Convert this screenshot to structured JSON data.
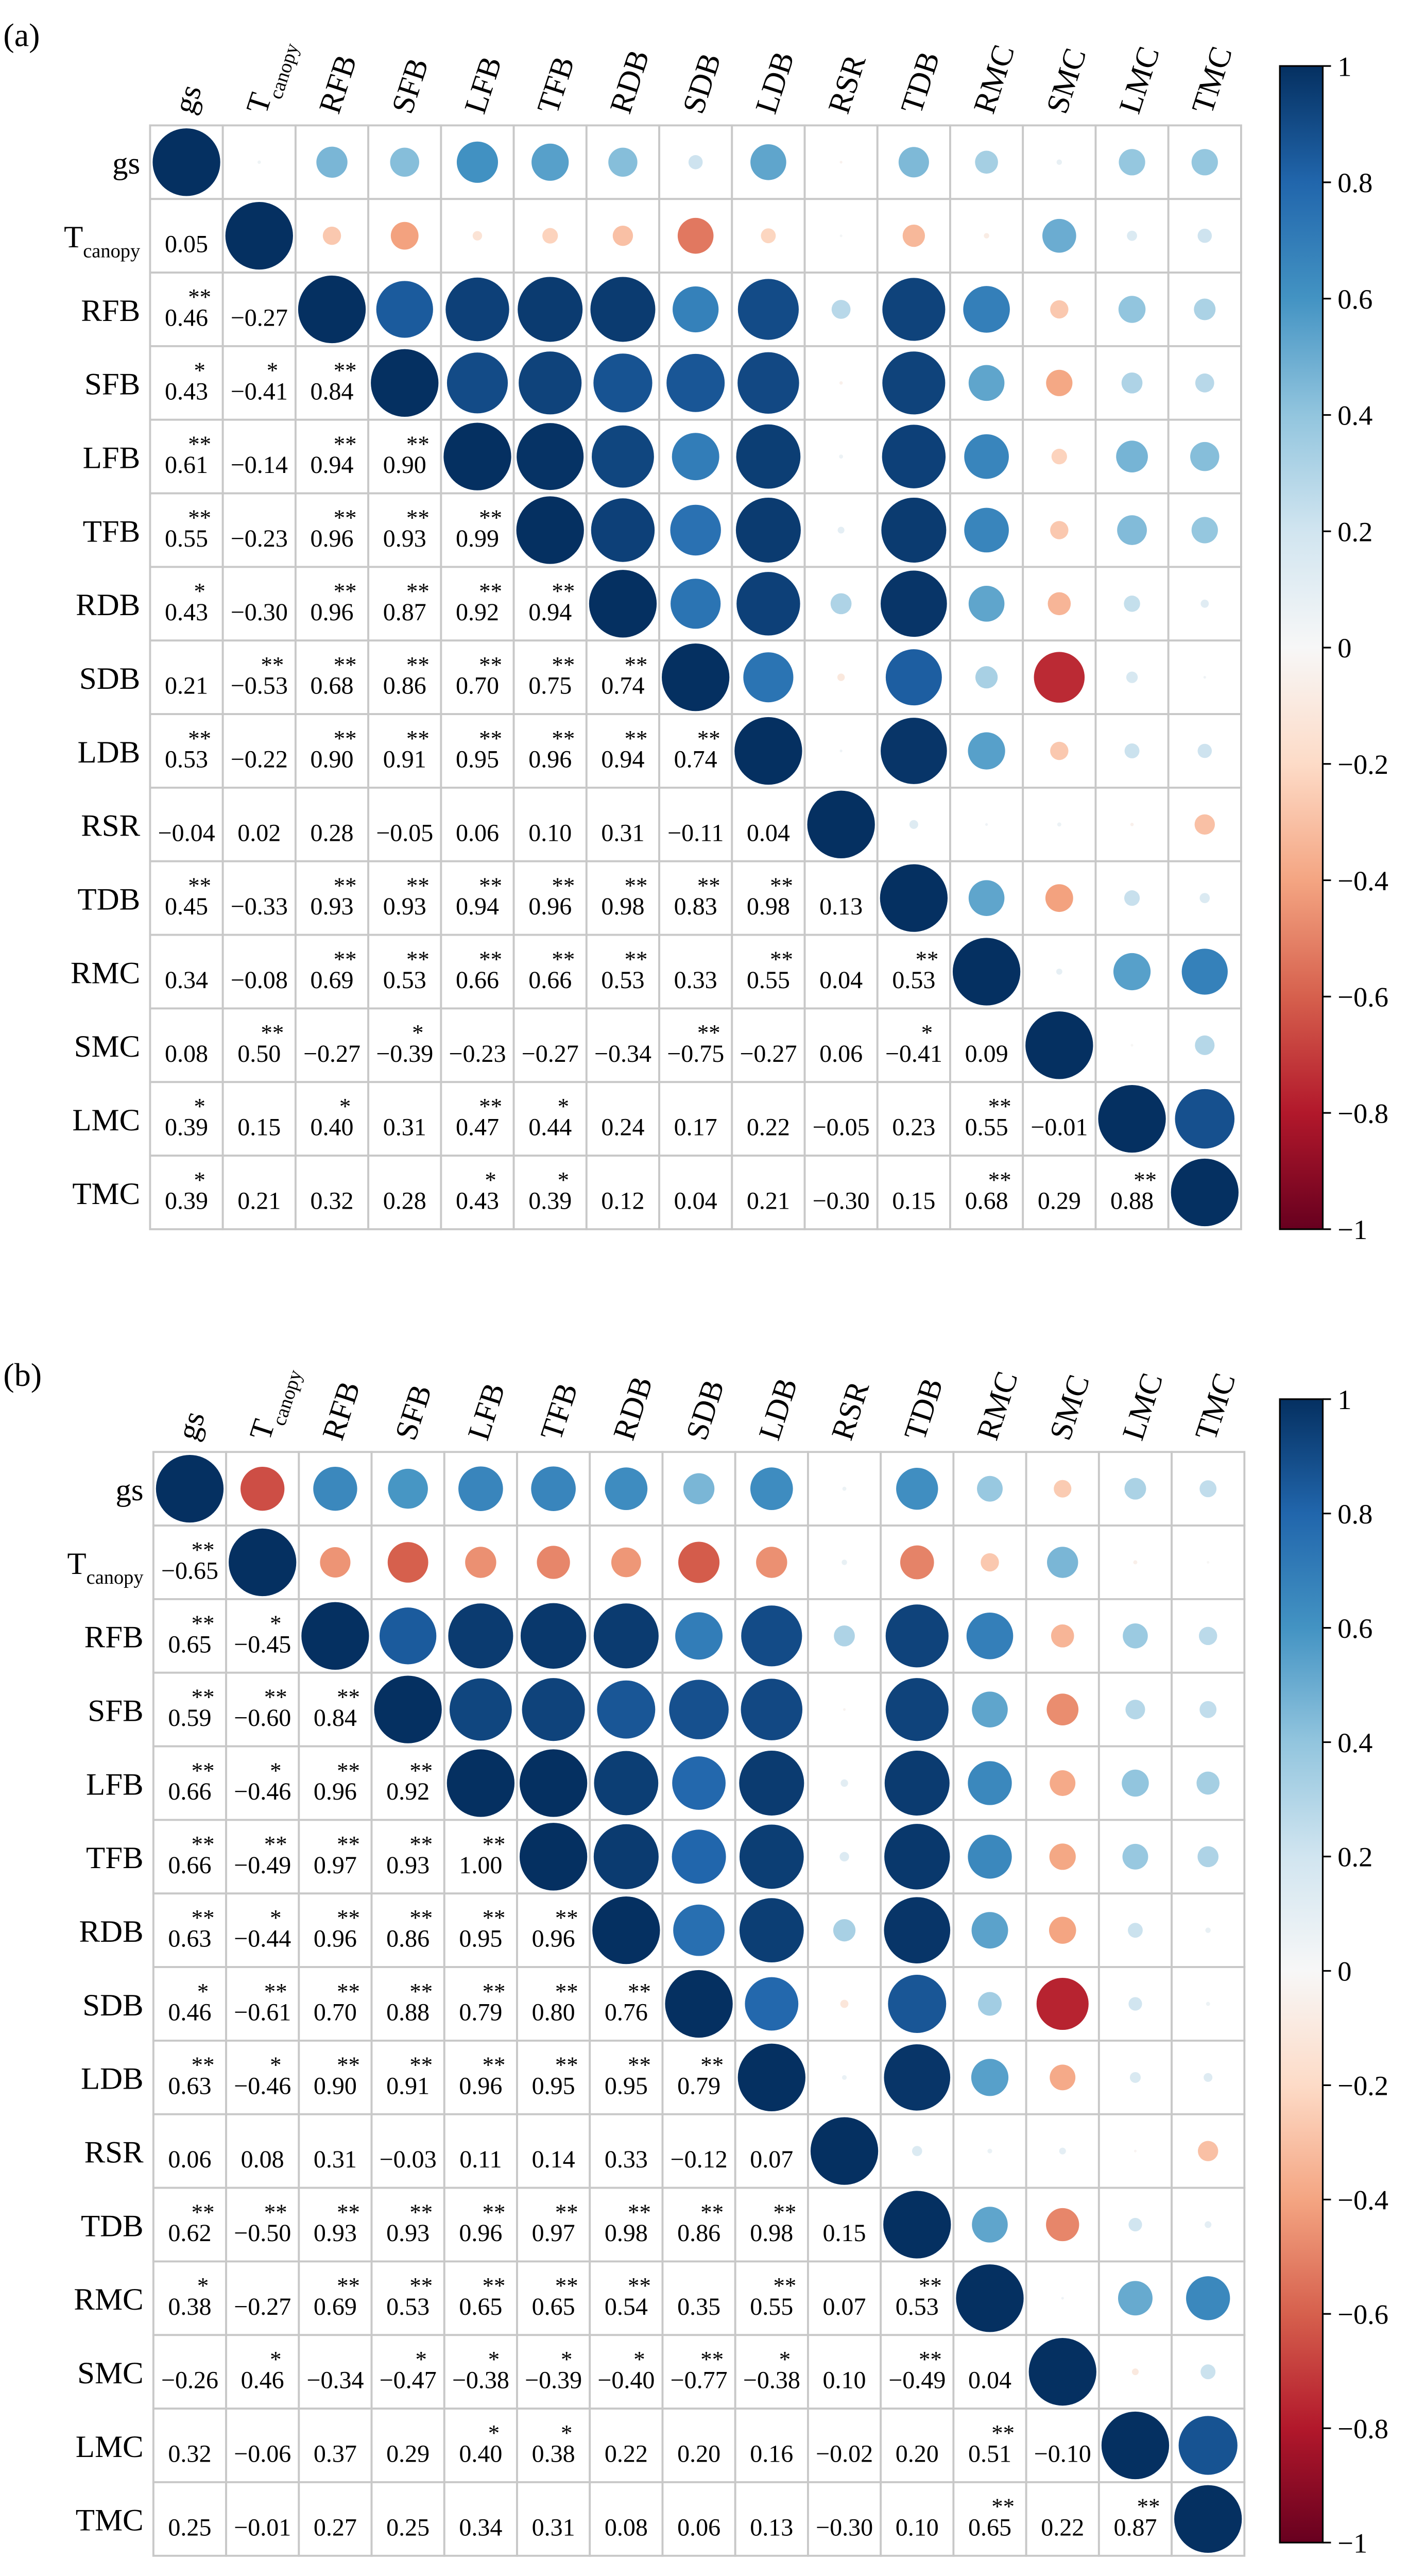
{
  "chart_data": [
    {
      "type": "heatmap",
      "panel_label": "(a)",
      "variables": [
        {
          "name": "gs",
          "sub": ""
        },
        {
          "name": "T",
          "sub": "canopy"
        },
        {
          "name": "RFB",
          "sub": ""
        },
        {
          "name": "SFB",
          "sub": ""
        },
        {
          "name": "LFB",
          "sub": ""
        },
        {
          "name": "TFB",
          "sub": ""
        },
        {
          "name": "RDB",
          "sub": ""
        },
        {
          "name": "SDB",
          "sub": ""
        },
        {
          "name": "LDB",
          "sub": ""
        },
        {
          "name": "RSR",
          "sub": ""
        },
        {
          "name": "TDB",
          "sub": ""
        },
        {
          "name": "RMC",
          "sub": ""
        },
        {
          "name": "SMC",
          "sub": ""
        },
        {
          "name": "LMC",
          "sub": ""
        },
        {
          "name": "TMC",
          "sub": ""
        }
      ],
      "lower_values": [
        [],
        [
          0.05
        ],
        [
          0.46,
          -0.27
        ],
        [
          0.43,
          -0.41,
          0.84
        ],
        [
          0.61,
          -0.14,
          0.94,
          0.9
        ],
        [
          0.55,
          -0.23,
          0.96,
          0.93,
          0.99
        ],
        [
          0.43,
          -0.3,
          0.96,
          0.87,
          0.92,
          0.94
        ],
        [
          0.21,
          -0.53,
          0.68,
          0.86,
          0.7,
          0.75,
          0.74
        ],
        [
          0.53,
          -0.22,
          0.9,
          0.91,
          0.95,
          0.96,
          0.94,
          0.74
        ],
        [
          -0.04,
          0.02,
          0.28,
          -0.05,
          0.06,
          0.1,
          0.31,
          -0.11,
          0.04
        ],
        [
          0.45,
          -0.33,
          0.93,
          0.93,
          0.94,
          0.96,
          0.98,
          0.83,
          0.98,
          0.13
        ],
        [
          0.34,
          -0.08,
          0.69,
          0.53,
          0.66,
          0.66,
          0.53,
          0.33,
          0.55,
          0.04,
          0.53
        ],
        [
          0.08,
          0.5,
          -0.27,
          -0.39,
          -0.23,
          -0.27,
          -0.34,
          -0.75,
          -0.27,
          0.06,
          -0.41,
          0.09
        ],
        [
          0.39,
          0.15,
          0.4,
          0.31,
          0.47,
          0.44,
          0.24,
          0.17,
          0.22,
          -0.05,
          0.23,
          0.55,
          -0.01
        ],
        [
          0.39,
          0.21,
          0.32,
          0.28,
          0.43,
          0.39,
          0.12,
          0.04,
          0.21,
          -0.3,
          0.15,
          0.68,
          0.29,
          0.88
        ]
      ],
      "significance": [
        [],
        [
          ""
        ],
        [
          "**",
          ""
        ],
        [
          "*",
          "*",
          "**"
        ],
        [
          "**",
          "",
          "**",
          "**"
        ],
        [
          "**",
          "",
          "**",
          "**",
          "**"
        ],
        [
          "*",
          "",
          "**",
          "**",
          "**",
          "**"
        ],
        [
          "",
          "**",
          "**",
          "**",
          "**",
          "**",
          "**"
        ],
        [
          "**",
          "",
          "**",
          "**",
          "**",
          "**",
          "**",
          "**"
        ],
        [
          "",
          "",
          "",
          "",
          "",
          "",
          "",
          "",
          ""
        ],
        [
          "**",
          "",
          "**",
          "**",
          "**",
          "**",
          "**",
          "**",
          "**",
          ""
        ],
        [
          "",
          "",
          "**",
          "**",
          "**",
          "**",
          "**",
          "",
          "**",
          "",
          "**"
        ],
        [
          "",
          "**",
          "",
          "*",
          "",
          "",
          "",
          "**",
          "",
          "",
          "*",
          ""
        ],
        [
          "*",
          "",
          "*",
          "",
          "**",
          "*",
          "",
          "",
          "",
          "",
          "",
          "**",
          ""
        ],
        [
          "*",
          "",
          "",
          "",
          "*",
          "*",
          "",
          "",
          "",
          "",
          "",
          "**",
          "",
          "**"
        ]
      ],
      "colorbar": {
        "range": [
          -1,
          1
        ],
        "ticks": [
          "1",
          "0.8",
          "0.6",
          "0.4",
          "0.2",
          "0",
          "−0.2",
          "−0.4",
          "−0.6",
          "−0.8",
          "−1"
        ]
      }
    },
    {
      "type": "heatmap",
      "panel_label": "(b)",
      "variables": [
        {
          "name": "gs",
          "sub": ""
        },
        {
          "name": "T",
          "sub": "canopy"
        },
        {
          "name": "RFB",
          "sub": ""
        },
        {
          "name": "SFB",
          "sub": ""
        },
        {
          "name": "LFB",
          "sub": ""
        },
        {
          "name": "TFB",
          "sub": ""
        },
        {
          "name": "RDB",
          "sub": ""
        },
        {
          "name": "SDB",
          "sub": ""
        },
        {
          "name": "LDB",
          "sub": ""
        },
        {
          "name": "RSR",
          "sub": ""
        },
        {
          "name": "TDB",
          "sub": ""
        },
        {
          "name": "RMC",
          "sub": ""
        },
        {
          "name": "SMC",
          "sub": ""
        },
        {
          "name": "LMC",
          "sub": ""
        },
        {
          "name": "TMC",
          "sub": ""
        }
      ],
      "lower_values": [
        [],
        [
          -0.65
        ],
        [
          0.65,
          -0.45
        ],
        [
          0.59,
          -0.6,
          0.84
        ],
        [
          0.66,
          -0.46,
          0.96,
          0.92
        ],
        [
          0.66,
          -0.49,
          0.97,
          0.93,
          1.0
        ],
        [
          0.63,
          -0.44,
          0.96,
          0.86,
          0.95,
          0.96
        ],
        [
          0.46,
          -0.61,
          0.7,
          0.88,
          0.79,
          0.8,
          0.76
        ],
        [
          0.63,
          -0.46,
          0.9,
          0.91,
          0.96,
          0.95,
          0.95,
          0.79
        ],
        [
          0.06,
          0.08,
          0.31,
          -0.03,
          0.11,
          0.14,
          0.33,
          -0.12,
          0.07
        ],
        [
          0.62,
          -0.5,
          0.93,
          0.93,
          0.96,
          0.97,
          0.98,
          0.86,
          0.98,
          0.15
        ],
        [
          0.38,
          -0.27,
          0.69,
          0.53,
          0.65,
          0.65,
          0.54,
          0.35,
          0.55,
          0.07,
          0.53
        ],
        [
          -0.26,
          0.46,
          -0.34,
          -0.47,
          -0.38,
          -0.39,
          -0.4,
          -0.77,
          -0.38,
          0.1,
          -0.49,
          0.04
        ],
        [
          0.32,
          -0.06,
          0.37,
          0.29,
          0.4,
          0.38,
          0.22,
          0.2,
          0.16,
          -0.02,
          0.2,
          0.51,
          -0.1
        ],
        [
          0.25,
          -0.01,
          0.27,
          0.25,
          0.34,
          0.31,
          0.08,
          0.06,
          0.13,
          -0.3,
          0.1,
          0.65,
          0.22,
          0.87
        ]
      ],
      "significance": [
        [],
        [
          "**"
        ],
        [
          "**",
          "*"
        ],
        [
          "**",
          "**",
          "**"
        ],
        [
          "**",
          "*",
          "**",
          "**"
        ],
        [
          "**",
          "**",
          "**",
          "**",
          "**"
        ],
        [
          "**",
          "*",
          "**",
          "**",
          "**",
          "**"
        ],
        [
          "*",
          "**",
          "**",
          "**",
          "**",
          "**",
          "**"
        ],
        [
          "**",
          "*",
          "**",
          "**",
          "**",
          "**",
          "**",
          "**"
        ],
        [
          "",
          "",
          "",
          "",
          "",
          "",
          "",
          "",
          ""
        ],
        [
          "**",
          "**",
          "**",
          "**",
          "**",
          "**",
          "**",
          "**",
          "**",
          ""
        ],
        [
          "*",
          "",
          "**",
          "**",
          "**",
          "**",
          "**",
          "",
          "**",
          "",
          "**"
        ],
        [
          "",
          "*",
          "",
          "*",
          "*",
          "*",
          "*",
          "**",
          "*",
          "",
          "**",
          ""
        ],
        [
          "",
          "",
          "",
          "",
          "*",
          "*",
          "",
          "",
          "",
          "",
          "",
          "**",
          ""
        ],
        [
          "",
          "",
          "",
          "",
          "",
          "",
          "",
          "",
          "",
          "",
          "",
          "**",
          "",
          "**"
        ]
      ],
      "colorbar": {
        "range": [
          -1,
          1
        ],
        "ticks": [
          "1",
          "0.8",
          "0.6",
          "0.4",
          "0.2",
          "0",
          "−0.2",
          "−0.4",
          "−0.6",
          "−0.8",
          "−1"
        ]
      }
    }
  ],
  "colormap": [
    "#67001f",
    "#b2182b",
    "#d6604d",
    "#f4a582",
    "#fddbc7",
    "#f7f7f7",
    "#d1e5f0",
    "#92c5de",
    "#4393c3",
    "#2166ac",
    "#053061"
  ]
}
